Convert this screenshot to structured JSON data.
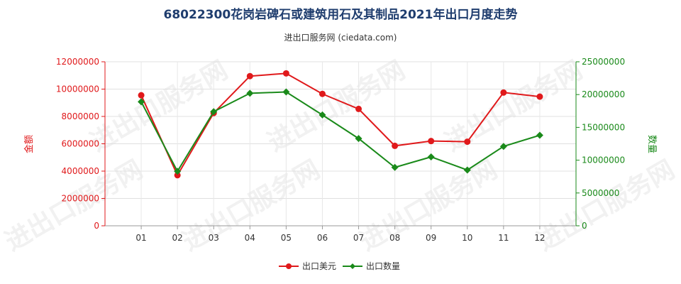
{
  "title": "68022300花岗岩碑石或建筑用石及其制品2021年出口月度走势",
  "subtitle": "进出口服务网 (ciedata.com)",
  "watermark": "进出口服务网",
  "chart_data": {
    "type": "line",
    "categories": [
      "01",
      "02",
      "03",
      "04",
      "05",
      "06",
      "07",
      "08",
      "09",
      "10",
      "11",
      "12"
    ],
    "y_left": {
      "label": "金额",
      "range": [
        0,
        12000000
      ],
      "ticks": [
        "0",
        "2000000",
        "4000000",
        "6000000",
        "8000000",
        "10000000",
        "12000000"
      ],
      "color": "#e0191b"
    },
    "y_right": {
      "label": "数量",
      "range": [
        0,
        25000000
      ],
      "ticks": [
        "0",
        "5000000",
        "10000000",
        "15000000",
        "20000000",
        "25000000"
      ],
      "color": "#1a8a1a"
    },
    "series": [
      {
        "name": "出口美元",
        "axis": "left",
        "color": "#e0191b",
        "marker": "circle",
        "values": [
          9550000,
          3700000,
          8250000,
          10950000,
          11150000,
          9650000,
          8550000,
          5850000,
          6200000,
          6150000,
          9750000,
          9450000
        ]
      },
      {
        "name": "出口数量",
        "axis": "right",
        "color": "#1a8a1a",
        "marker": "diamond",
        "values": [
          18900000,
          8300000,
          17400000,
          20200000,
          20400000,
          16900000,
          13300000,
          8900000,
          10500000,
          8500000,
          12100000,
          13800000
        ]
      }
    ],
    "grid": true,
    "legend_position": "bottom-center"
  }
}
